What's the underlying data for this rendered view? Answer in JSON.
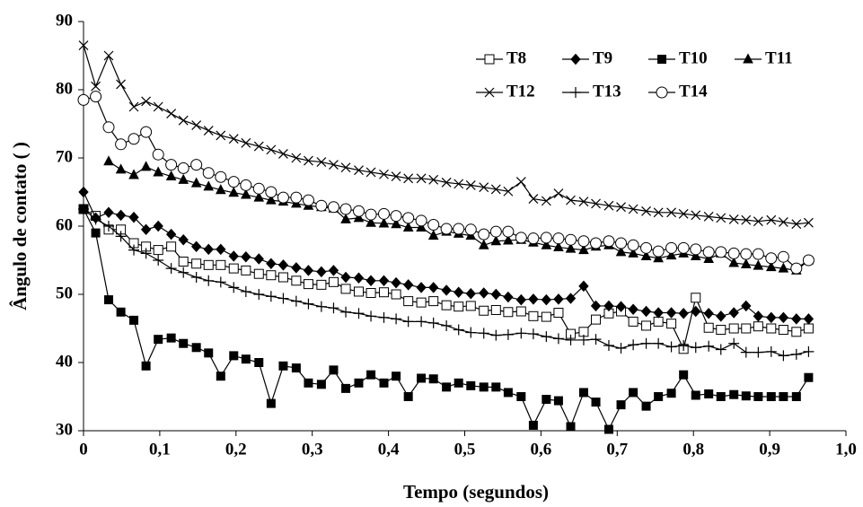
{
  "chart_data": {
    "type": "line",
    "xlabel": "Tempo (segundos)",
    "ylabel": "Ângulo de contato ( )",
    "x": [
      0,
      0.016,
      0.033,
      0.049,
      0.066,
      0.082,
      0.098,
      0.115,
      0.131,
      0.148,
      0.164,
      0.18,
      0.197,
      0.213,
      0.23,
      0.246,
      0.262,
      0.279,
      0.295,
      0.312,
      0.328,
      0.344,
      0.361,
      0.377,
      0.394,
      0.41,
      0.426,
      0.443,
      0.459,
      0.476,
      0.492,
      0.508,
      0.525,
      0.541,
      0.557,
      0.574,
      0.59,
      0.607,
      0.623,
      0.639,
      0.656,
      0.672,
      0.689,
      0.705,
      0.721,
      0.738,
      0.754,
      0.771,
      0.787,
      0.803,
      0.82,
      0.836,
      0.853,
      0.869,
      0.885,
      0.902,
      0.918,
      0.935,
      0.951
    ],
    "xlim": [
      0,
      1.0
    ],
    "xticks": [
      0,
      {
        "value": 0.1,
        "label": "0,1"
      },
      {
        "value": 0.2,
        "label": "0,2"
      },
      {
        "value": 0.3,
        "label": "0,3"
      },
      {
        "value": 0.4,
        "label": "0,4"
      },
      {
        "value": 0.5,
        "label": "0,5"
      },
      {
        "value": 0.6,
        "label": "0,6"
      },
      {
        "value": 0.7,
        "label": "0,7"
      },
      {
        "value": 0.8,
        "label": "0,8"
      },
      {
        "value": 0.9,
        "label": "0,9"
      },
      {
        "value": 1.0,
        "label": "1,0"
      }
    ],
    "ylim": [
      30,
      90
    ],
    "yticks": [
      30,
      40,
      50,
      60,
      70,
      80,
      90
    ],
    "legend": "upper right",
    "series": [
      {
        "name": "T8",
        "color": "#000000",
        "marker": "square-open",
        "values": [
          62.5,
          61.5,
          59.5,
          59.5,
          57.5,
          57.0,
          56.5,
          57.0,
          54.8,
          54.5,
          54.3,
          54.3,
          53.8,
          53.5,
          53.0,
          52.8,
          52.5,
          52.0,
          51.5,
          51.4,
          51.8,
          50.8,
          50.4,
          50.2,
          50.3,
          50.0,
          49.0,
          48.8,
          49.0,
          48.4,
          48.2,
          48.3,
          47.6,
          47.7,
          47.4,
          47.5,
          46.8,
          46.7,
          47.3,
          44.2,
          44.5,
          46.3,
          47.2,
          47.5,
          46.0,
          45.4,
          46.0,
          45.7,
          42.0,
          49.5,
          45.1,
          44.8,
          45.0,
          45.0,
          45.3,
          45.0,
          44.8,
          44.5,
          45.0
        ]
      },
      {
        "name": "T9",
        "color": "#000000",
        "marker": "diamond",
        "values": [
          65.0,
          61.2,
          62.0,
          61.6,
          61.3,
          59.5,
          60.0,
          58.8,
          58.0,
          57.0,
          56.6,
          56.6,
          55.6,
          55.5,
          55.2,
          54.5,
          54.3,
          53.9,
          53.5,
          53.3,
          53.5,
          52.5,
          52.4,
          52.0,
          52.0,
          51.7,
          51.4,
          51.0,
          51.0,
          50.6,
          50.3,
          50.1,
          50.2,
          50.0,
          49.6,
          49.2,
          49.3,
          49.2,
          49.3,
          49.4,
          51.2,
          48.3,
          48.3,
          48.2,
          47.8,
          47.5,
          47.3,
          47.3,
          47.2,
          47.5,
          47.2,
          46.8,
          47.3,
          48.3,
          46.8,
          46.6,
          46.6,
          46.4,
          46.4
        ]
      },
      {
        "name": "T10",
        "color": "#000000",
        "marker": "square",
        "values": [
          62.5,
          59.0,
          49.2,
          47.4,
          46.2,
          39.5,
          43.4,
          43.6,
          42.8,
          42.2,
          41.4,
          38.0,
          41.0,
          40.5,
          40.0,
          34.0,
          39.5,
          39.2,
          37.0,
          36.8,
          38.9,
          36.2,
          37.0,
          38.2,
          37.0,
          38.0,
          35.0,
          37.7,
          37.6,
          36.4,
          37.0,
          36.6,
          36.4,
          36.4,
          35.6,
          35.0,
          30.8,
          34.6,
          34.4,
          30.6,
          35.6,
          34.2,
          30.2,
          33.8,
          35.6,
          33.6,
          35.0,
          35.5,
          38.2,
          35.2,
          35.4,
          35.0,
          35.3,
          35.1,
          35.0,
          35.0,
          35.0,
          35.0,
          37.8
        ]
      },
      {
        "name": "T11",
        "color": "#000000",
        "marker": "triangle",
        "values": [
          null,
          null,
          69.5,
          68.3,
          67.5,
          68.7,
          67.9,
          67.3,
          66.8,
          66.3,
          65.8,
          65.3,
          64.9,
          64.6,
          64.2,
          63.8,
          63.6,
          63.3,
          63.0,
          62.8,
          62.6,
          61.0,
          61.2,
          60.5,
          60.4,
          60.3,
          59.8,
          59.8,
          58.6,
          59.2,
          58.9,
          58.6,
          57.2,
          57.8,
          57.9,
          58.0,
          57.6,
          57.2,
          56.9,
          56.7,
          56.5,
          57.0,
          57.2,
          56.2,
          56.0,
          55.6,
          55.3,
          55.7,
          56.0,
          55.6,
          55.2,
          56.0,
          54.6,
          54.4,
          54.2,
          54.0,
          53.8,
          53.5,
          55.0
        ]
      },
      {
        "name": "T12",
        "color": "#000000",
        "marker": "x",
        "values": [
          86.5,
          80.5,
          85.0,
          80.8,
          77.5,
          78.3,
          77.5,
          76.5,
          75.5,
          74.8,
          74.0,
          73.3,
          72.8,
          72.2,
          71.7,
          71.2,
          70.6,
          70.0,
          69.6,
          69.4,
          69.0,
          68.6,
          68.2,
          67.9,
          67.6,
          67.3,
          67.0,
          67.0,
          66.8,
          66.4,
          66.2,
          66.0,
          65.7,
          65.4,
          65.1,
          66.5,
          64.0,
          63.7,
          64.8,
          63.8,
          63.6,
          63.3,
          63.0,
          62.8,
          62.5,
          62.2,
          62.0,
          62.0,
          61.8,
          61.6,
          61.4,
          61.2,
          61.0,
          60.9,
          60.7,
          60.9,
          60.6,
          60.3,
          60.5
        ]
      },
      {
        "name": "T13",
        "color": "#000000",
        "marker": "plus",
        "values": [
          62.5,
          61.0,
          60.0,
          58.5,
          56.5,
          56.0,
          55.0,
          53.8,
          53.2,
          52.5,
          52.0,
          51.8,
          51.0,
          50.4,
          50.0,
          49.7,
          49.4,
          49.0,
          48.6,
          48.2,
          48.0,
          47.4,
          47.2,
          46.8,
          46.6,
          46.4,
          46.0,
          46.0,
          45.8,
          45.4,
          44.8,
          44.4,
          44.3,
          44.0,
          44.1,
          44.3,
          44.2,
          43.8,
          43.5,
          43.3,
          43.3,
          43.4,
          42.5,
          42.1,
          42.6,
          42.8,
          42.8,
          42.3,
          42.5,
          42.2,
          42.4,
          41.9,
          42.8,
          41.5,
          41.5,
          41.6,
          41.0,
          41.2,
          41.6
        ]
      },
      {
        "name": "T14",
        "color": "#000000",
        "marker": "circle-open",
        "values": [
          78.5,
          79.0,
          74.5,
          72.0,
          72.8,
          73.8,
          70.5,
          69.0,
          68.5,
          69.0,
          67.8,
          67.2,
          66.5,
          66.0,
          65.5,
          65.0,
          64.2,
          64.2,
          63.8,
          63.0,
          62.8,
          62.5,
          62.2,
          61.7,
          61.8,
          61.5,
          61.2,
          60.8,
          60.2,
          59.6,
          59.6,
          59.5,
          58.8,
          59.2,
          59.2,
          58.3,
          58.2,
          58.3,
          58.2,
          58.0,
          57.8,
          57.5,
          57.8,
          57.5,
          57.2,
          56.8,
          56.3,
          56.8,
          56.8,
          56.6,
          56.2,
          56.2,
          56.0,
          55.9,
          55.9,
          55.3,
          55.5,
          53.8,
          55.0
        ]
      }
    ]
  }
}
